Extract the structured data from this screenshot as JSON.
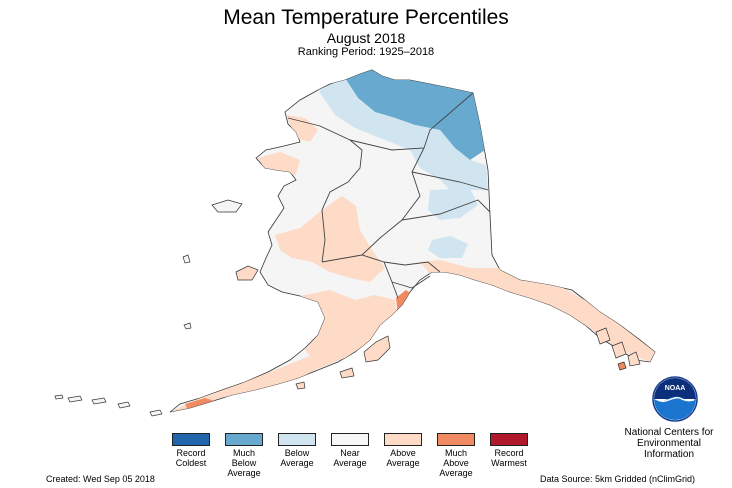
{
  "title": "Mean Temperature Percentiles",
  "subtitle": "August 2018",
  "ranking": "Ranking Period: 1925–2018",
  "legend": [
    {
      "label": "Record Coldest",
      "lines": [
        "Record",
        "Coldest"
      ],
      "color": "#2166ac"
    },
    {
      "label": "Much Below Average",
      "lines": [
        "Much",
        "Below",
        "Average"
      ],
      "color": "#67a9cf"
    },
    {
      "label": "Below Average",
      "lines": [
        "Below",
        "Average"
      ],
      "color": "#d1e5f0"
    },
    {
      "label": "Near Average",
      "lines": [
        "Near",
        "Average"
      ],
      "color": "#f7f7f7"
    },
    {
      "label": "Above Average",
      "lines": [
        "Above",
        "Average"
      ],
      "color": "#fddbc7"
    },
    {
      "label": "Much Above Average",
      "lines": [
        "Much",
        "Above",
        "Average"
      ],
      "color": "#ef8a62"
    },
    {
      "label": "Record Warmest",
      "lines": [
        "Record",
        "Warmest"
      ],
      "color": "#b2182b"
    }
  ],
  "created": "Created: Wed Sep 05 2018",
  "source": "Data Source: 5km Gridded (nClimGrid)",
  "org": {
    "logo_text": "NOAA",
    "lines": [
      "National Centers for",
      "Environmental",
      "Information"
    ]
  },
  "colors": {
    "much_below": "#67a9cf",
    "below": "#d1e5f0",
    "near": "#f7f7f7",
    "above": "#fddbc7",
    "much_above": "#ef8a62",
    "outline": "#333333",
    "noaa_blue": "#1a75cf"
  }
}
